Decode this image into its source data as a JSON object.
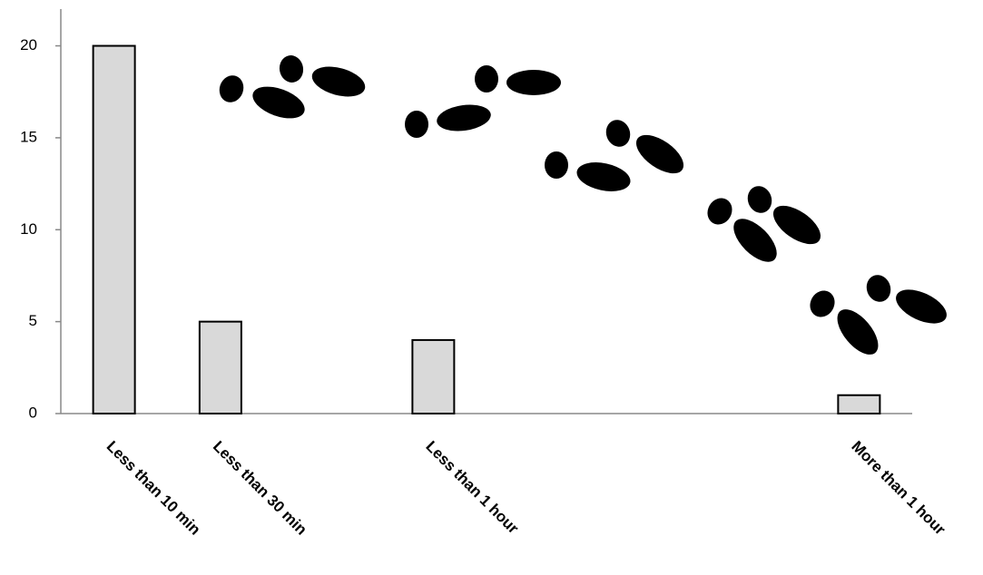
{
  "chart_data": {
    "type": "bar",
    "categories": [
      "Less than 10 min",
      "Less than 30 min",
      null,
      "Less than 1 hour",
      null,
      null,
      null,
      "More than 1 hour"
    ],
    "values": [
      20,
      5,
      null,
      4,
      null,
      null,
      null,
      1
    ],
    "color": "#d9d9d9",
    "ylim": [
      0,
      22
    ],
    "yticks": [
      0,
      5,
      10,
      15,
      20
    ],
    "grid": false
  }
}
